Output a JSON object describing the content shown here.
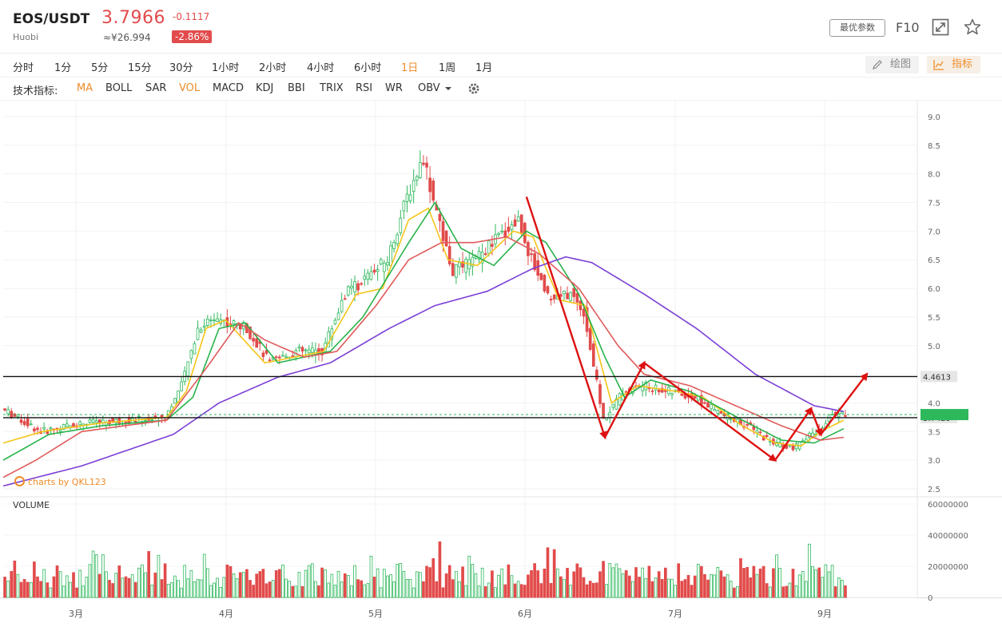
{
  "header": {
    "symbol": "EOS/USDT",
    "exchange": "Huobi",
    "price": "3.7966",
    "price_cny": "≈¥26.994",
    "change": "-0.1117",
    "change_pct": "-2.86%",
    "params_label": "最优参数",
    "f10_label": "F10",
    "icons": [
      "expand-icon",
      "star-icon"
    ]
  },
  "timeframes": {
    "items": [
      "分时",
      "1分",
      "5分",
      "15分",
      "30分",
      "1小时",
      "2小时",
      "4小时",
      "6小时",
      "1日",
      "1周",
      "1月"
    ],
    "active": "1日",
    "draw_label": "绘图",
    "indicator_label": "指标"
  },
  "indicators": {
    "label": "技术指标:",
    "items": [
      "MA",
      "BOLL",
      "SAR",
      "VOL",
      "MACD",
      "KDJ",
      "BBI",
      "TRIX",
      "RSI",
      "WR",
      "OBV"
    ],
    "active": [
      "MA",
      "VOL"
    ],
    "settings_icon": "gear-icon"
  },
  "watermark": "charts by QKL123",
  "volume_label": "VOLUME",
  "colors": {
    "up": "#2eb85c",
    "down": "#e24b4b",
    "ma5": "#f5c518",
    "ma10": "#27b34a",
    "ma20": "#e05a5a",
    "ma60": "#7b3fd6",
    "arrows": "#dd1111",
    "accent": "#f08c2a"
  },
  "chart_data": {
    "type": "candlestick",
    "price_axis": {
      "ticks": [
        "9.0",
        "8.5",
        "8.0",
        "7.5",
        "7.0",
        "6.5",
        "6.0",
        "5.5",
        "5.0",
        "4.5",
        "4.0",
        "3.5",
        "3.0",
        "2.5"
      ],
      "ylim": [
        2.5,
        9.0
      ]
    },
    "volume_axis": {
      "ticks": [
        "60000000",
        "40000000",
        "20000000",
        "0"
      ],
      "ylim": [
        0,
        60000000
      ]
    },
    "x_ticks": [
      "3月",
      "4月",
      "5月",
      "6月",
      "7月",
      "9月"
    ],
    "horizontal_levels": [
      {
        "value": 4.4613,
        "label": "4.4613"
      },
      {
        "value": 3.7429,
        "label": "3.7429"
      }
    ],
    "current_price": 3.7966,
    "price_path": [
      {
        "t": 0,
        "p": 3.9
      },
      {
        "t": 12,
        "p": 3.5
      },
      {
        "t": 25,
        "p": 3.65
      },
      {
        "t": 40,
        "p": 3.7
      },
      {
        "t": 50,
        "p": 3.75
      },
      {
        "t": 55,
        "p": 4.3
      },
      {
        "t": 60,
        "p": 5.3
      },
      {
        "t": 65,
        "p": 5.5
      },
      {
        "t": 75,
        "p": 5.3
      },
      {
        "t": 82,
        "p": 4.7
      },
      {
        "t": 90,
        "p": 4.9
      },
      {
        "t": 98,
        "p": 4.9
      },
      {
        "t": 105,
        "p": 5.9
      },
      {
        "t": 112,
        "p": 6.2
      },
      {
        "t": 118,
        "p": 6.5
      },
      {
        "t": 124,
        "p": 7.6
      },
      {
        "t": 129,
        "p": 8.3
      },
      {
        "t": 133,
        "p": 7.3
      },
      {
        "t": 138,
        "p": 6.3
      },
      {
        "t": 145,
        "p": 6.5
      },
      {
        "t": 152,
        "p": 6.9
      },
      {
        "t": 158,
        "p": 7.2
      },
      {
        "t": 162,
        "p": 6.5
      },
      {
        "t": 168,
        "p": 5.8
      },
      {
        "t": 174,
        "p": 5.9
      },
      {
        "t": 178,
        "p": 5.6
      },
      {
        "t": 184,
        "p": 3.7
      },
      {
        "t": 190,
        "p": 4.2
      },
      {
        "t": 196,
        "p": 4.3
      },
      {
        "t": 204,
        "p": 4.2
      },
      {
        "t": 212,
        "p": 4.1
      },
      {
        "t": 220,
        "p": 3.8
      },
      {
        "t": 228,
        "p": 3.6
      },
      {
        "t": 236,
        "p": 3.3
      },
      {
        "t": 242,
        "p": 3.2
      },
      {
        "t": 250,
        "p": 3.55
      },
      {
        "t": 254,
        "p": 3.8
      },
      {
        "t": 257,
        "p": 3.7966
      }
    ],
    "moving_averages": [
      {
        "name": "MA5",
        "points": [
          [
            0,
            3.3
          ],
          [
            12,
            3.5
          ],
          [
            30,
            3.65
          ],
          [
            50,
            3.75
          ],
          [
            56,
            4.2
          ],
          [
            62,
            5.3
          ],
          [
            68,
            5.45
          ],
          [
            80,
            4.7
          ],
          [
            98,
            4.9
          ],
          [
            108,
            5.9
          ],
          [
            116,
            6.0
          ],
          [
            124,
            7.2
          ],
          [
            130,
            7.4
          ],
          [
            136,
            6.5
          ],
          [
            145,
            6.4
          ],
          [
            156,
            7.0
          ],
          [
            162,
            6.9
          ],
          [
            170,
            5.8
          ],
          [
            178,
            5.7
          ],
          [
            186,
            4.0
          ],
          [
            194,
            4.3
          ],
          [
            206,
            4.2
          ],
          [
            214,
            4.1
          ],
          [
            226,
            3.6
          ],
          [
            236,
            3.3
          ],
          [
            244,
            3.25
          ],
          [
            250,
            3.5
          ],
          [
            257,
            3.7
          ]
        ]
      },
      {
        "name": "MA10",
        "points": [
          [
            0,
            3.0
          ],
          [
            14,
            3.45
          ],
          [
            30,
            3.6
          ],
          [
            50,
            3.7
          ],
          [
            58,
            4.1
          ],
          [
            66,
            5.3
          ],
          [
            74,
            5.4
          ],
          [
            84,
            4.7
          ],
          [
            100,
            4.9
          ],
          [
            110,
            5.5
          ],
          [
            124,
            6.8
          ],
          [
            132,
            7.5
          ],
          [
            140,
            6.7
          ],
          [
            150,
            6.4
          ],
          [
            160,
            7.0
          ],
          [
            166,
            6.8
          ],
          [
            176,
            5.9
          ],
          [
            184,
            4.8
          ],
          [
            190,
            4.1
          ],
          [
            198,
            4.4
          ],
          [
            210,
            4.2
          ],
          [
            226,
            3.7
          ],
          [
            238,
            3.35
          ],
          [
            248,
            3.3
          ],
          [
            257,
            3.55
          ]
        ]
      },
      {
        "name": "MA20",
        "points": [
          [
            0,
            2.7
          ],
          [
            10,
            3.0
          ],
          [
            24,
            3.5
          ],
          [
            50,
            3.7
          ],
          [
            62,
            4.6
          ],
          [
            72,
            5.4
          ],
          [
            80,
            5.1
          ],
          [
            92,
            4.8
          ],
          [
            102,
            4.9
          ],
          [
            114,
            5.7
          ],
          [
            124,
            6.5
          ],
          [
            134,
            6.8
          ],
          [
            144,
            6.8
          ],
          [
            154,
            6.9
          ],
          [
            164,
            6.6
          ],
          [
            176,
            6.0
          ],
          [
            188,
            5.0
          ],
          [
            196,
            4.5
          ],
          [
            210,
            4.3
          ],
          [
            222,
            4.0
          ],
          [
            238,
            3.6
          ],
          [
            250,
            3.35
          ],
          [
            257,
            3.4
          ]
        ]
      },
      {
        "name": "MA60",
        "points": [
          [
            0,
            2.55
          ],
          [
            24,
            2.9
          ],
          [
            52,
            3.45
          ],
          [
            66,
            4.0
          ],
          [
            84,
            4.45
          ],
          [
            100,
            4.7
          ],
          [
            118,
            5.3
          ],
          [
            132,
            5.7
          ],
          [
            148,
            5.95
          ],
          [
            162,
            6.35
          ],
          [
            172,
            6.55
          ],
          [
            180,
            6.45
          ],
          [
            196,
            5.9
          ],
          [
            212,
            5.3
          ],
          [
            230,
            4.5
          ],
          [
            248,
            3.95
          ],
          [
            257,
            3.85
          ]
        ]
      }
    ],
    "annotation_arrows": [
      {
        "from": [
          160,
          7.6
        ],
        "to": [
          184,
          3.4
        ]
      },
      {
        "from": [
          184,
          3.4
        ],
        "to": [
          196,
          4.7
        ]
      },
      {
        "from": [
          196,
          4.7
        ],
        "to": [
          236,
          3.0
        ]
      },
      {
        "from": [
          236,
          3.0
        ],
        "to": [
          247,
          3.9
        ]
      },
      {
        "from": [
          247,
          3.9
        ],
        "to": [
          250,
          3.45
        ]
      },
      {
        "from": [
          250,
          3.45
        ],
        "to": [
          264,
          4.5
        ]
      }
    ],
    "n_bars": 258
  }
}
